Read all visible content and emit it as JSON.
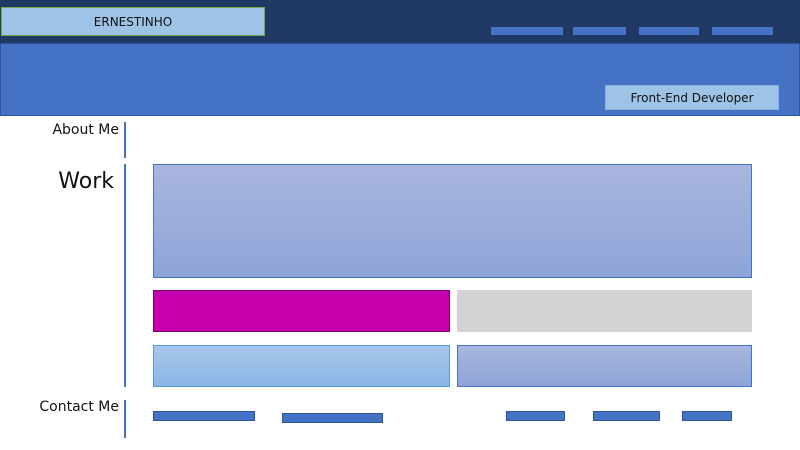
{
  "header": {
    "logo_text": "ERNESTINHO",
    "nav_items": [
      "",
      "",
      "",
      ""
    ]
  },
  "hero": {
    "role": "Front-End Developer"
  },
  "sections": {
    "about_label": "About Me",
    "work_label": "Work",
    "contact_label": "Contact Me"
  },
  "colors": {
    "navbar": "#1f3864",
    "hero": "#4472c4",
    "logo_bg": "#9dc3e6",
    "tile_magenta": "#c600ad",
    "tile_grey": "#d3d3d3",
    "tile_lightblue": "#9dc3e6",
    "tile_periwinkle": "#8ea4d8"
  }
}
